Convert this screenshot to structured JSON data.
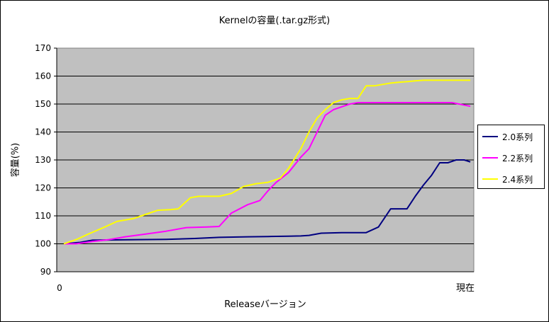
{
  "chart_data": {
    "type": "line",
    "title": "Kernelの容量(.tar.gz形式)",
    "xlabel": "Releaseバージョン",
    "ylabel": "容量(%)",
    "x_tick_labels": [
      "0",
      "現在"
    ],
    "ylim": [
      90,
      170
    ],
    "yticks": [
      90,
      100,
      110,
      120,
      130,
      140,
      150,
      160,
      170
    ],
    "xlim": [
      0,
      100
    ],
    "grid": true,
    "legend_position": "right",
    "plot_background": "#c0c0c0",
    "series": [
      {
        "name": "2.0系列",
        "color": "#000080",
        "x": [
          0,
          4,
          7,
          12,
          18,
          25,
          32,
          38,
          45,
          50,
          55,
          58,
          60,
          63,
          68,
          72,
          74,
          77,
          80,
          82,
          84,
          86,
          88,
          90,
          92,
          94,
          96,
          98,
          99.5
        ],
        "y": [
          100,
          100.5,
          101.3,
          101.4,
          101.5,
          101.6,
          101.9,
          102.3,
          102.5,
          102.6,
          102.7,
          102.8,
          103,
          103.8,
          104,
          104,
          104,
          106,
          112.5,
          112.5,
          112.5,
          117,
          121,
          124.5,
          129,
          129,
          130,
          130,
          129.3
        ]
      },
      {
        "name": "2.2系列",
        "color": "#ff00ff",
        "x": [
          0,
          3,
          7,
          11,
          15,
          20,
          25,
          30,
          35,
          38,
          41,
          45,
          48,
          50,
          52,
          55,
          58,
          60,
          62,
          64,
          66,
          68,
          70,
          72,
          74,
          76,
          78,
          80,
          85,
          90,
          95,
          99.5
        ],
        "y": [
          100,
          100,
          100.8,
          101.5,
          102.5,
          103.5,
          104.5,
          105.8,
          106,
          106.2,
          111,
          114,
          115.5,
          119,
          122,
          125.5,
          131,
          134,
          140,
          146,
          148,
          149,
          150,
          150.5,
          150.5,
          150.5,
          150.5,
          150.5,
          150.5,
          150.5,
          150.5,
          149.2
        ]
      },
      {
        "name": "2.4系列",
        "color": "#ffff00",
        "x": [
          0,
          3,
          6,
          10,
          13,
          17,
          20,
          23,
          26,
          28,
          31,
          33,
          35,
          38,
          41,
          44,
          47,
          50,
          53,
          55,
          58,
          60,
          62,
          64,
          66,
          68,
          70,
          72,
          74,
          76,
          78,
          80,
          82,
          84,
          86,
          88,
          90,
          92,
          94,
          96,
          98,
          99.5
        ],
        "y": [
          100,
          101.5,
          103.5,
          106,
          108,
          109,
          110.5,
          112,
          112.2,
          112.5,
          116.5,
          117,
          117,
          117,
          118,
          120.5,
          121.5,
          122,
          123.5,
          127,
          134,
          140,
          145,
          148,
          150.5,
          151.5,
          152,
          152,
          156.5,
          156.5,
          157,
          157.5,
          157.8,
          158,
          158.3,
          158.5,
          158.5,
          158.5,
          158.5,
          158.5,
          158.5,
          158.5
        ]
      }
    ]
  }
}
